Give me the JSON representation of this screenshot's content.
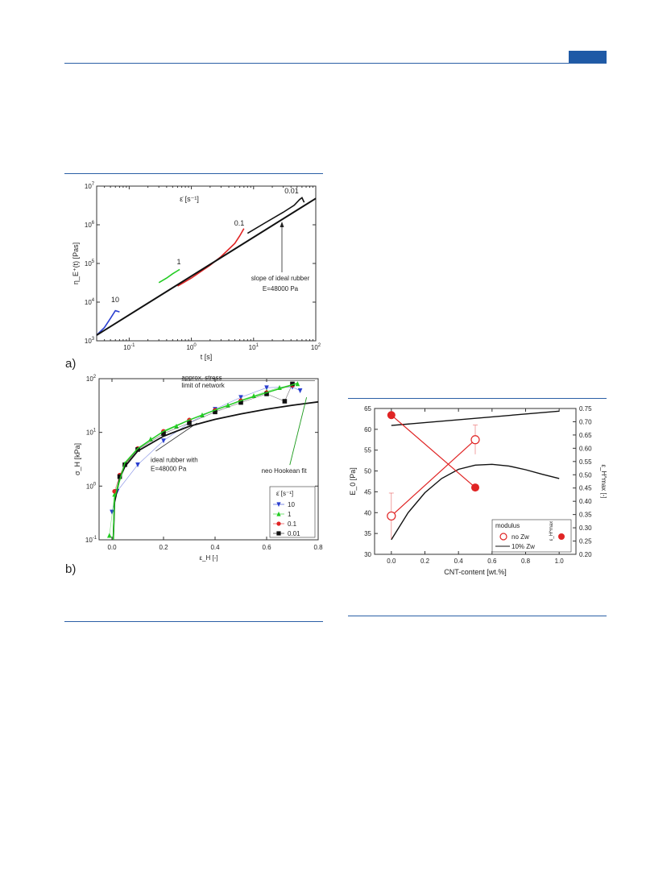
{
  "page": {
    "panel_a_label": "a)",
    "panel_b_label": "b)"
  },
  "colors": {
    "accent": "#1f5aa6",
    "red": "#e02424",
    "green": "#22cc22",
    "blue": "#2a3fd0",
    "black": "#111111"
  },
  "chart_data": [
    {
      "type": "line",
      "id": "a",
      "xscale": "log",
      "yscale": "log",
      "xlim": [
        0.03,
        100
      ],
      "ylim": [
        1000,
        10000000
      ],
      "xlabel": "t [s]",
      "ylabel": "η_E⁺(t) [Pas]",
      "xticks": [
        {
          "v": 0.1,
          "base": "10",
          "exp": "-1"
        },
        {
          "v": 1,
          "base": "10",
          "exp": "0"
        },
        {
          "v": 10,
          "base": "10",
          "exp": "1"
        },
        {
          "v": 100,
          "base": "10",
          "exp": "2"
        }
      ],
      "yticks": [
        {
          "v": 1000,
          "base": "10",
          "exp": "3"
        },
        {
          "v": 10000,
          "base": "10",
          "exp": "4"
        },
        {
          "v": 100000,
          "base": "10",
          "exp": "5"
        },
        {
          "v": 1000000,
          "base": "10",
          "exp": "6"
        },
        {
          "v": 10000000,
          "base": "10",
          "exp": "7"
        }
      ],
      "legend_title": "ε̇ [s⁻¹]",
      "series": [
        {
          "label": "10",
          "color": "#2a3fd0",
          "points": [
            [
              0.03,
              1400
            ],
            [
              0.04,
              2200
            ],
            [
              0.05,
              3800
            ],
            [
              0.06,
              6000
            ],
            [
              0.07,
              5600
            ]
          ]
        },
        {
          "label": "1",
          "color": "#22cc22",
          "points": [
            [
              0.3,
              32000
            ],
            [
              0.4,
              42000
            ],
            [
              0.5,
              54000
            ],
            [
              0.6,
              65000
            ],
            [
              0.65,
              70000
            ]
          ]
        },
        {
          "label": "0.1",
          "color": "#e02424",
          "points": [
            [
              0.6,
              26000
            ],
            [
              1,
              42000
            ],
            [
              2,
              90000
            ],
            [
              3,
              150000
            ],
            [
              5,
              330000
            ],
            [
              6,
              520000
            ],
            [
              7,
              800000
            ]
          ]
        },
        {
          "label": "0.01",
          "color": "#111111",
          "points": [
            [
              8,
              600000
            ],
            [
              15,
              1100000
            ],
            [
              30,
              2100000
            ],
            [
              45,
              3200000
            ],
            [
              55,
              4500000
            ],
            [
              60,
              5000000
            ],
            [
              65,
              3800000
            ]
          ]
        },
        {
          "label": "ideal rubber",
          "color": "#111111",
          "width": 2,
          "points": [
            [
              0.03,
              1400
            ],
            [
              100,
              4800000
            ]
          ]
        }
      ],
      "annotations": [
        {
          "text": "slope of ideal rubber",
          "x": 5,
          "y": 40000
        },
        {
          "text": "E=48000 Pa",
          "x": 5,
          "y": 24000
        }
      ]
    },
    {
      "type": "scatter",
      "id": "b",
      "xscale": "linear",
      "yscale": "log",
      "xlim": [
        -0.05,
        0.8
      ],
      "ylim": [
        0.1,
        100
      ],
      "xlabel": "ε_H [-]",
      "ylabel": "σ_H [kPa]",
      "xticks": [
        0.0,
        0.2,
        0.4,
        0.6,
        0.8
      ],
      "yticks": [
        {
          "v": 0.1,
          "base": "10",
          "exp": "-1"
        },
        {
          "v": 1,
          "base": "10",
          "exp": "0"
        },
        {
          "v": 10,
          "base": "10",
          "exp": "1"
        },
        {
          "v": 100,
          "base": "10",
          "exp": "2"
        }
      ],
      "legend_title": "ε̇ [s⁻¹]",
      "legend": [
        {
          "label": "10",
          "color": "#2a3fd0",
          "marker": "tri-down"
        },
        {
          "label": "1",
          "color": "#22cc22",
          "marker": "tri-up"
        },
        {
          "label": "0.1",
          "color": "#e02424",
          "marker": "circle"
        },
        {
          "label": "0.01",
          "color": "#111111",
          "marker": "square"
        }
      ],
      "series": [
        {
          "label": "10",
          "color": "#2a3fd0",
          "marker": "tri-down",
          "points": [
            [
              0.0,
              0.33
            ],
            [
              0.02,
              0.8
            ],
            [
              0.1,
              2.5
            ],
            [
              0.2,
              7
            ],
            [
              0.3,
              15
            ],
            [
              0.4,
              27
            ],
            [
              0.5,
              45
            ],
            [
              0.6,
              68
            ],
            [
              0.7,
              70
            ],
            [
              0.73,
              60
            ]
          ]
        },
        {
          "label": "1",
          "color": "#22cc22",
          "marker": "tri-up",
          "points": [
            [
              -0.01,
              0.12
            ],
            [
              0.01,
              0.7
            ],
            [
              0.03,
              1.5
            ],
            [
              0.05,
              2.6
            ],
            [
              0.1,
              5
            ],
            [
              0.15,
              7.5
            ],
            [
              0.2,
              10
            ],
            [
              0.25,
              13
            ],
            [
              0.3,
              17
            ],
            [
              0.35,
              21
            ],
            [
              0.4,
              26
            ],
            [
              0.45,
              32
            ],
            [
              0.5,
              40
            ],
            [
              0.55,
              48
            ],
            [
              0.6,
              58
            ],
            [
              0.65,
              68
            ],
            [
              0.7,
              78
            ],
            [
              0.72,
              80
            ]
          ]
        },
        {
          "label": "0.1",
          "color": "#e02424",
          "marker": "circle",
          "points": [
            [
              0.01,
              0.8
            ],
            [
              0.03,
              1.6
            ],
            [
              0.05,
              2.5
            ],
            [
              0.1,
              5
            ],
            [
              0.2,
              10.5
            ],
            [
              0.3,
              17
            ],
            [
              0.4,
              26
            ],
            [
              0.5,
              39
            ],
            [
              0.6,
              55
            ],
            [
              0.7,
              75
            ]
          ]
        },
        {
          "label": "0.01",
          "color": "#111111",
          "marker": "square",
          "points": [
            [
              0.03,
              1.5
            ],
            [
              0.05,
              2.5
            ],
            [
              0.1,
              4.8
            ],
            [
              0.2,
              9.5
            ],
            [
              0.3,
              15
            ],
            [
              0.4,
              24
            ],
            [
              0.5,
              36
            ],
            [
              0.6,
              52
            ],
            [
              0.67,
              38
            ],
            [
              0.7,
              80
            ]
          ]
        }
      ],
      "curves": [
        {
          "label": "ideal rubber",
          "color": "#111111",
          "width": 1.8,
          "points": [
            [
              0.005,
              0.1
            ],
            [
              0.01,
              0.5
            ],
            [
              0.03,
              1.4
            ],
            [
              0.05,
              2.3
            ],
            [
              0.1,
              4.5
            ],
            [
              0.2,
              8.5
            ],
            [
              0.3,
              13
            ],
            [
              0.4,
              17.5
            ],
            [
              0.5,
              22
            ],
            [
              0.6,
              27
            ],
            [
              0.7,
              32
            ],
            [
              0.8,
              37
            ]
          ]
        },
        {
          "label": "neo Hookean fit",
          "color": "#22cc22",
          "width": 1.5,
          "points": [
            [
              0.005,
              0.1
            ],
            [
              0.01,
              0.6
            ],
            [
              0.05,
              2.7
            ],
            [
              0.1,
              5
            ],
            [
              0.2,
              10.5
            ],
            [
              0.3,
              17
            ],
            [
              0.4,
              26
            ],
            [
              0.5,
              39
            ],
            [
              0.6,
              55
            ],
            [
              0.72,
              82
            ]
          ]
        }
      ],
      "annotations": [
        {
          "text": "approx. stress",
          "x": 0.27,
          "y": 95
        },
        {
          "text": "limit of network",
          "x": 0.27,
          "y": 68
        },
        {
          "text": "ideal rubber with",
          "x": 0.15,
          "y": 2.8
        },
        {
          "text": "E=48000 Pa",
          "x": 0.15,
          "y": 1.9
        },
        {
          "text": "neo Hookean fit",
          "x": 0.58,
          "y": 1.75,
          "color": "#1a9a1a"
        }
      ]
    },
    {
      "type": "scatter",
      "id": "c",
      "xlim": [
        -0.1,
        1.1
      ],
      "ylim": [
        30,
        65
      ],
      "y2lim": [
        0.2,
        0.75
      ],
      "xlabel": "CNT-content [wt.%]",
      "ylabel": "E_0 [Pa]",
      "y2label": "ε_H^max [-]",
      "xticks": [
        "0.0",
        "0.2",
        "0.4",
        "0.6",
        "0.8",
        "1.0"
      ],
      "yticks": [
        "30",
        "35",
        "40",
        "45",
        "50",
        "55",
        "60",
        "65"
      ],
      "y2ticks": [
        "0.20",
        "0.25",
        "0.30",
        "0.35",
        "0.40",
        "0.45",
        "0.50",
        "0.55",
        "0.60",
        "0.65",
        "0.70",
        "0.75"
      ],
      "legend": {
        "col1_title": "modulus",
        "col2_title": "ε_H^max",
        "row1": "no Zw",
        "row2": "10% Zw"
      },
      "series": [
        {
          "label": "modulus no Zw",
          "color": "#e02424",
          "marker": "open-circle",
          "points": [
            [
              0.0,
              39.2,
              5.5
            ],
            [
              0.5,
              57.5,
              3.5
            ]
          ]
        },
        {
          "label": "ε_H^max no Zw",
          "color": "#e02424",
          "marker": "filled-circle",
          "axis": "y2",
          "points": [
            [
              0.0,
              0.725
            ],
            [
              0.5,
              0.452
            ]
          ]
        }
      ],
      "curves": [
        {
          "label": "modulus 10% Zw",
          "axis": "y",
          "points": [
            [
              0.0,
              33.5
            ],
            [
              0.1,
              40
            ],
            [
              0.2,
              44.8
            ],
            [
              0.3,
              48.2
            ],
            [
              0.4,
              50.4
            ],
            [
              0.5,
              51.4
            ],
            [
              0.6,
              51.6
            ],
            [
              0.7,
              51.2
            ],
            [
              0.8,
              50.3
            ],
            [
              0.9,
              49.2
            ],
            [
              1.0,
              48.2
            ]
          ]
        },
        {
          "label": "ε_H^max 10% Zw",
          "axis": "y2",
          "points": [
            [
              0.0,
              0.686
            ],
            [
              1.0,
              0.74
            ]
          ]
        }
      ]
    }
  ]
}
